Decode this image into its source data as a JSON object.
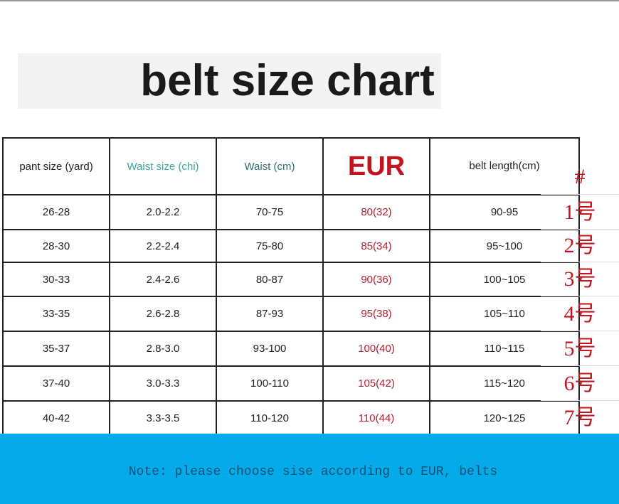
{
  "title": "belt size chart",
  "headers": [
    "pant size (yard)",
    "Waist size (chi)",
    "Waist (cm)",
    "EUR",
    "belt length(cm)",
    "#"
  ],
  "rows": [
    [
      "26-28",
      "2.0-2.2",
      "70-75",
      "80(32)",
      "90-95",
      "1号"
    ],
    [
      "28-30",
      "2.2-2.4",
      "75-80",
      "85(34)",
      "95~100",
      "2号"
    ],
    [
      "30-33",
      "2.4-2.6",
      "80-87",
      "90(36)",
      "100~105",
      "3号"
    ],
    [
      "33-35",
      "2.6-2.8",
      "87-93",
      "95(38)",
      "105~110",
      "4号"
    ],
    [
      "35-37",
      "2.8-3.0",
      "93-100",
      "100(40)",
      "110~115",
      "5号"
    ],
    [
      "37-40",
      "3.0-3.3",
      "100-110",
      "105(42)",
      "115~120",
      "6号"
    ],
    [
      "40-42",
      "3.3-3.5",
      "110-120",
      "110(44)",
      "120~125",
      "7号"
    ]
  ],
  "note": "Note: please choose sise according to EUR, belts",
  "colors": {
    "accent_red": "#c0141e",
    "band_blue": "#05abe8"
  }
}
